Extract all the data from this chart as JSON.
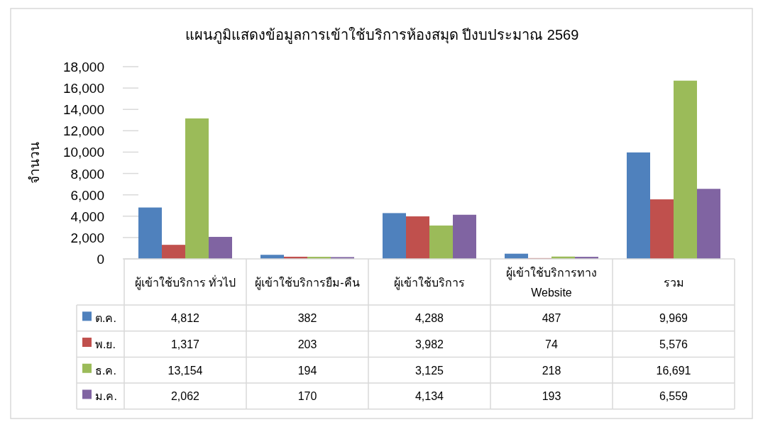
{
  "chart_data": {
    "type": "bar",
    "title": "แผนภูมิแสดงข้อมูลการเข้าใช้บริการห้องสมุด ปีงบประมาณ 2569",
    "ylabel": "จำนวน",
    "categories": [
      "ผู้เข้าใช้บริการ ทั่วไป",
      "ผู้เข้าใช้บริการยืม-คืน",
      "ผู้เข้าใช้บริการ",
      "ผู้เข้าใช้บริการทาง Website",
      "รวม"
    ],
    "series": [
      {
        "name": "ต.ค.",
        "color": "#4f81bd",
        "values": [
          4812,
          382,
          4288,
          487,
          9969
        ],
        "value_labels": [
          "4,812",
          "382",
          "4,288",
          "487",
          "9,969"
        ]
      },
      {
        "name": "พ.ย.",
        "color": "#c0504d",
        "values": [
          1317,
          203,
          3982,
          74,
          5576
        ],
        "value_labels": [
          "1,317",
          "203",
          "3,982",
          "74",
          "5,576"
        ]
      },
      {
        "name": "ธ.ค.",
        "color": "#9bbb59",
        "values": [
          13154,
          194,
          3125,
          218,
          16691
        ],
        "value_labels": [
          "13,154",
          "194",
          "3,125",
          "218",
          "16,691"
        ]
      },
      {
        "name": "ม.ค.",
        "color": "#8064a2",
        "values": [
          2062,
          170,
          4134,
          193,
          6559
        ],
        "value_labels": [
          "2,062",
          "170",
          "4,134",
          "193",
          "6,559"
        ]
      }
    ],
    "ylim": [
      0,
      18000
    ],
    "yticks": [
      0,
      {
        "value": 2000,
        "label": "2,000"
      },
      {
        "value": 4000,
        "label": "4,000"
      },
      {
        "value": 6000,
        "label": "6,000"
      },
      {
        "value": 8000,
        "label": "8,000"
      },
      {
        "value": 10000,
        "label": "10,000"
      },
      {
        "value": 12000,
        "label": "12,000"
      },
      {
        "value": 14000,
        "label": "14,000"
      },
      {
        "value": 16000,
        "label": "16,000"
      },
      {
        "value": 18000,
        "label": "18,000"
      }
    ],
    "legend": "bottom left"
  }
}
